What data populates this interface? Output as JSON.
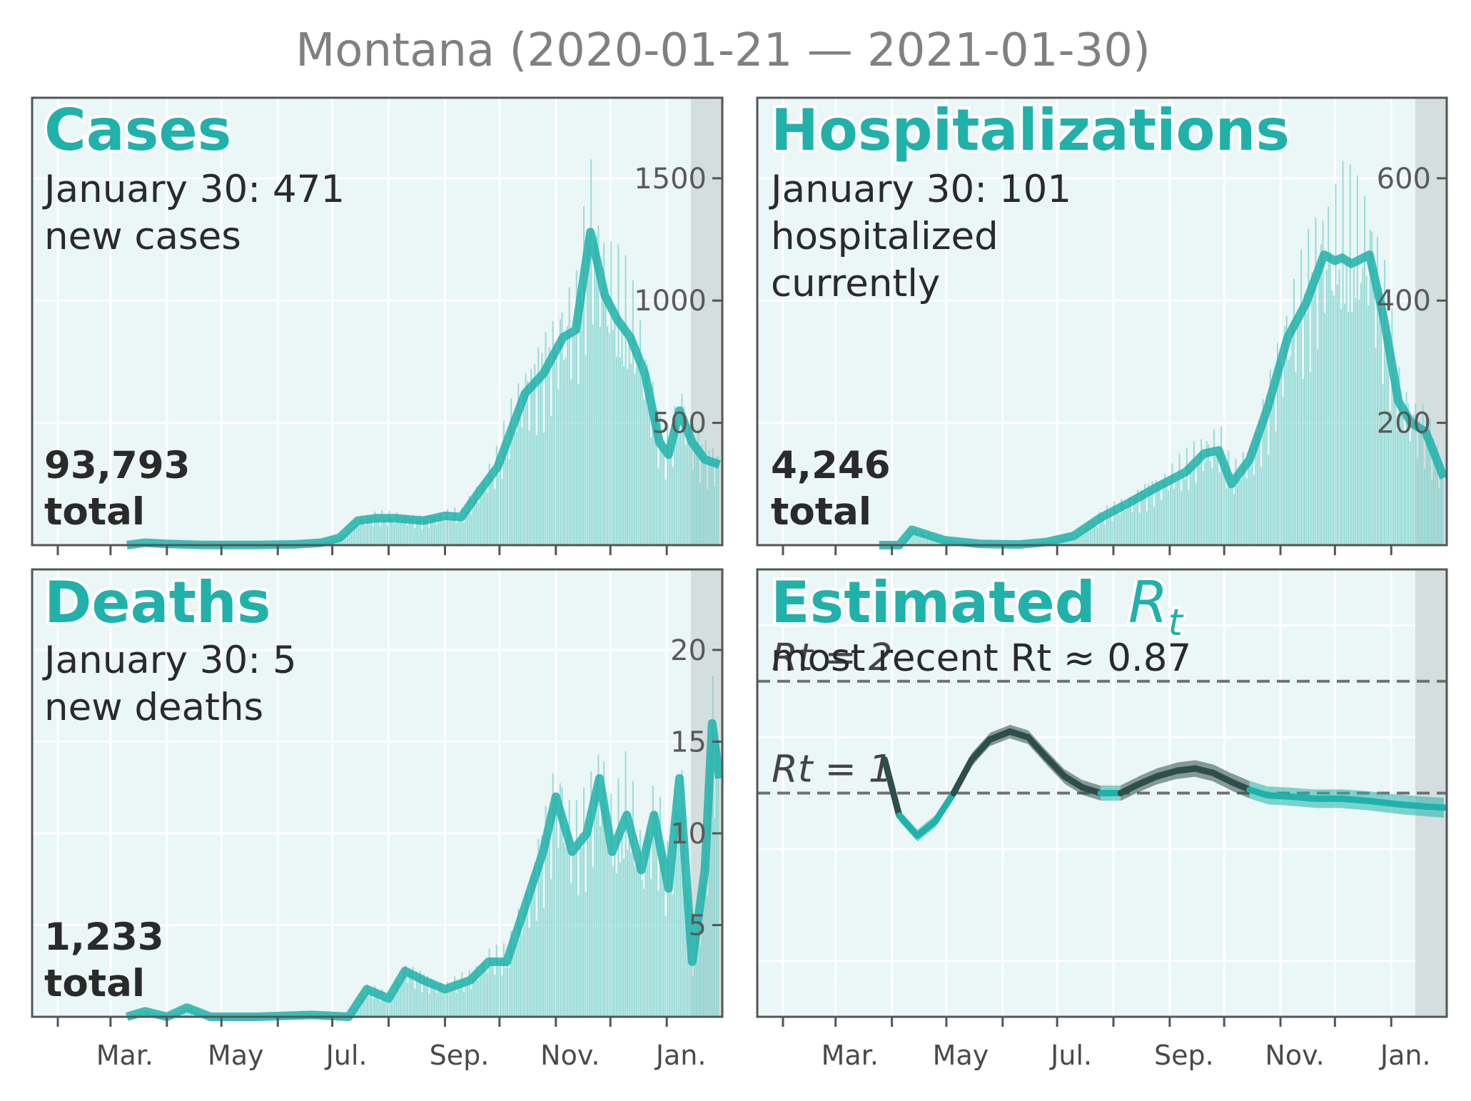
{
  "title": "Montana (2020-01-21 — 2021-01-30)",
  "colors": {
    "accent": "#20b2aa",
    "panel_bg": "#ebf6f6",
    "shade": "#d5dede",
    "dark": "#2a4a48"
  },
  "x_month_labels": [
    "Mar.",
    "May",
    "Jul.",
    "Sep.",
    "Nov.",
    "Jan."
  ],
  "chart_data": [
    {
      "type": "bar",
      "panel": "cases",
      "title": "Cases",
      "subtitle_line1": "January 30: 471",
      "subtitle_line2": "new cases",
      "total_number": "93,793",
      "total_label": "total",
      "x_range": [
        "2020-01-21",
        "2021-01-30"
      ],
      "ylim": [
        0,
        1500
      ],
      "yticks": [
        500,
        1000,
        1500
      ],
      "ytick_labels": [
        "500",
        "1000",
        "1500"
      ],
      "smoothed": [
        [
          "2020-03-10",
          0
        ],
        [
          "2020-03-20",
          10
        ],
        [
          "2020-04-01",
          5
        ],
        [
          "2020-04-20",
          1
        ],
        [
          "2020-05-20",
          1
        ],
        [
          "2020-06-10",
          3
        ],
        [
          "2020-06-25",
          10
        ],
        [
          "2020-07-05",
          30
        ],
        [
          "2020-07-15",
          100
        ],
        [
          "2020-07-25",
          110
        ],
        [
          "2020-08-05",
          110
        ],
        [
          "2020-08-20",
          100
        ],
        [
          "2020-09-01",
          120
        ],
        [
          "2020-09-10",
          115
        ],
        [
          "2020-09-20",
          220
        ],
        [
          "2020-09-30",
          320
        ],
        [
          "2020-10-05",
          420
        ],
        [
          "2020-10-15",
          620
        ],
        [
          "2020-10-25",
          700
        ],
        [
          "2020-11-05",
          850
        ],
        [
          "2020-11-12",
          880
        ],
        [
          "2020-11-20",
          1280
        ],
        [
          "2020-11-28",
          1020
        ],
        [
          "2020-12-05",
          920
        ],
        [
          "2020-12-12",
          850
        ],
        [
          "2020-12-20",
          700
        ],
        [
          "2020-12-28",
          420
        ],
        [
          "2021-01-02",
          370
        ],
        [
          "2021-01-08",
          550
        ],
        [
          "2021-01-15",
          420
        ],
        [
          "2021-01-22",
          350
        ],
        [
          "2021-01-30",
          330
        ]
      ]
    },
    {
      "type": "bar",
      "panel": "hospitalizations",
      "title": "Hospitalizations",
      "subtitle_line1": "January 30: 101",
      "subtitle_line2": "hospitalized",
      "subtitle_line3": "currently",
      "total_number": "4,246",
      "total_label": "total",
      "x_range": [
        "2020-01-21",
        "2021-01-30"
      ],
      "ylim": [
        0,
        600
      ],
      "yticks": [
        200,
        400,
        600
      ],
      "ytick_labels": [
        "200",
        "400",
        "600"
      ],
      "smoothed": [
        [
          "2020-03-25",
          0
        ],
        [
          "2020-04-05",
          0
        ],
        [
          "2020-04-12",
          25
        ],
        [
          "2020-04-30",
          8
        ],
        [
          "2020-05-20",
          2
        ],
        [
          "2020-06-10",
          1
        ],
        [
          "2020-06-25",
          5
        ],
        [
          "2020-07-10",
          15
        ],
        [
          "2020-07-25",
          45
        ],
        [
          "2020-08-10",
          70
        ],
        [
          "2020-08-25",
          95
        ],
        [
          "2020-09-10",
          120
        ],
        [
          "2020-09-20",
          150
        ],
        [
          "2020-09-28",
          155
        ],
        [
          "2020-10-05",
          100
        ],
        [
          "2020-10-15",
          140
        ],
        [
          "2020-10-25",
          225
        ],
        [
          "2020-11-05",
          340
        ],
        [
          "2020-11-15",
          395
        ],
        [
          "2020-11-25",
          475
        ],
        [
          "2020-12-01",
          465
        ],
        [
          "2020-12-05",
          470
        ],
        [
          "2020-12-10",
          460
        ],
        [
          "2020-12-20",
          475
        ],
        [
          "2020-12-28",
          370
        ],
        [
          "2021-01-05",
          235
        ],
        [
          "2021-01-12",
          200
        ],
        [
          "2021-01-20",
          185
        ],
        [
          "2021-01-30",
          110
        ]
      ]
    },
    {
      "type": "bar",
      "panel": "deaths",
      "title": "Deaths",
      "subtitle_line1": "January 30: 5",
      "subtitle_line2": "new deaths",
      "total_number": "1,233",
      "total_label": "total",
      "x_range": [
        "2020-01-21",
        "2021-01-30"
      ],
      "ylim": [
        0,
        20
      ],
      "yticks": [
        5,
        10,
        15,
        20
      ],
      "ytick_labels": [
        "5",
        "10",
        "15",
        "20"
      ],
      "smoothed": [
        [
          "2020-03-10",
          0
        ],
        [
          "2020-03-20",
          0.3
        ],
        [
          "2020-04-01",
          0
        ],
        [
          "2020-04-12",
          0.5
        ],
        [
          "2020-04-25",
          0
        ],
        [
          "2020-05-20",
          0
        ],
        [
          "2020-06-20",
          0.1
        ],
        [
          "2020-07-10",
          0
        ],
        [
          "2020-07-20",
          1.5
        ],
        [
          "2020-08-01",
          1
        ],
        [
          "2020-08-10",
          2.5
        ],
        [
          "2020-08-20",
          2
        ],
        [
          "2020-09-01",
          1.5
        ],
        [
          "2020-09-15",
          2
        ],
        [
          "2020-09-25",
          3
        ],
        [
          "2020-10-05",
          3
        ],
        [
          "2020-10-15",
          6
        ],
        [
          "2020-10-25",
          9
        ],
        [
          "2020-11-01",
          12
        ],
        [
          "2020-11-10",
          9
        ],
        [
          "2020-11-18",
          10
        ],
        [
          "2020-11-25",
          13
        ],
        [
          "2020-12-02",
          9
        ],
        [
          "2020-12-10",
          11
        ],
        [
          "2020-12-18",
          8
        ],
        [
          "2020-12-25",
          11
        ],
        [
          "2021-01-02",
          7
        ],
        [
          "2021-01-08",
          13
        ],
        [
          "2021-01-15",
          3
        ],
        [
          "2021-01-22",
          8
        ],
        [
          "2021-01-26",
          16
        ],
        [
          "2021-01-30",
          13
        ]
      ]
    },
    {
      "type": "line",
      "panel": "rt",
      "title_plain": "Estimated",
      "title_math": "Rt",
      "subtitle": "most recent Rt ≈ 0.87",
      "ref_lines": [
        {
          "label": "Rt = 2",
          "value": 2
        },
        {
          "label": "Rt = 1",
          "value": 1
        }
      ],
      "x_range": [
        "2020-01-21",
        "2021-01-30"
      ],
      "ylim": [
        -1,
        3
      ],
      "yticks": [
        -0.5,
        0.5,
        1.5,
        2.5
      ],
      "rt_series": [
        [
          "2020-03-28",
          1.3
        ],
        [
          "2020-04-05",
          0.8
        ],
        [
          "2020-04-15",
          0.62
        ],
        [
          "2020-04-25",
          0.75
        ],
        [
          "2020-05-05",
          1.0
        ],
        [
          "2020-05-15",
          1.3
        ],
        [
          "2020-05-25",
          1.48
        ],
        [
          "2020-06-05",
          1.55
        ],
        [
          "2020-06-15",
          1.5
        ],
        [
          "2020-06-25",
          1.32
        ],
        [
          "2020-07-05",
          1.15
        ],
        [
          "2020-07-15",
          1.05
        ],
        [
          "2020-07-25",
          1.0
        ],
        [
          "2020-08-05",
          1.0
        ],
        [
          "2020-08-15",
          1.08
        ],
        [
          "2020-08-25",
          1.15
        ],
        [
          "2020-09-05",
          1.2
        ],
        [
          "2020-09-15",
          1.22
        ],
        [
          "2020-09-25",
          1.18
        ],
        [
          "2020-10-05",
          1.1
        ],
        [
          "2020-10-15",
          1.03
        ],
        [
          "2020-10-25",
          0.98
        ],
        [
          "2020-11-05",
          0.97
        ],
        [
          "2020-11-20",
          0.95
        ],
        [
          "2020-12-05",
          0.95
        ],
        [
          "2020-12-20",
          0.93
        ],
        [
          "2021-01-05",
          0.9
        ],
        [
          "2021-01-20",
          0.88
        ],
        [
          "2021-01-30",
          0.87
        ]
      ]
    }
  ]
}
